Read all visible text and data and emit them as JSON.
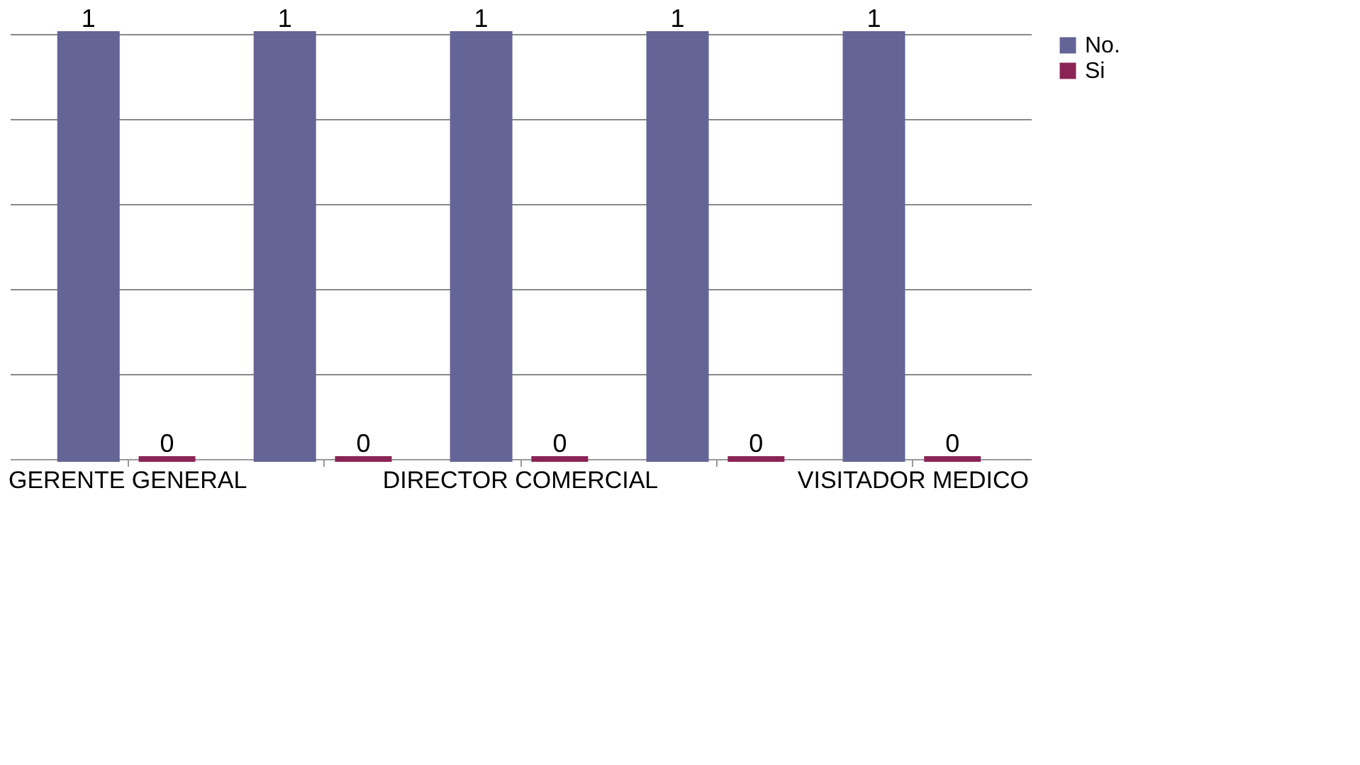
{
  "chart_data": {
    "type": "bar",
    "categories": [
      "GERENTE GENERAL",
      null,
      "DIRECTOR COMERCIAL",
      null,
      "VISITADOR MEDICO"
    ],
    "series": [
      {
        "name": "No.",
        "color": "#646496",
        "values": [
          1,
          1,
          1,
          1,
          1
        ]
      },
      {
        "name": "Si",
        "color": "#8b2456",
        "values": [
          0,
          0,
          0,
          0,
          0
        ]
      }
    ],
    "ylim": [
      0,
      1
    ],
    "yticks": [
      {
        "value": 0,
        "label": null
      },
      {
        "value": 0.2,
        "label": null
      },
      {
        "value": 0.4,
        "label": null
      },
      {
        "value": 0.6,
        "label": null
      },
      {
        "value": 0.8,
        "label": null
      },
      {
        "value": 1,
        "label": null
      }
    ],
    "grid": "y",
    "legend": "right",
    "data_labels": true,
    "tick_labels": "x"
  }
}
